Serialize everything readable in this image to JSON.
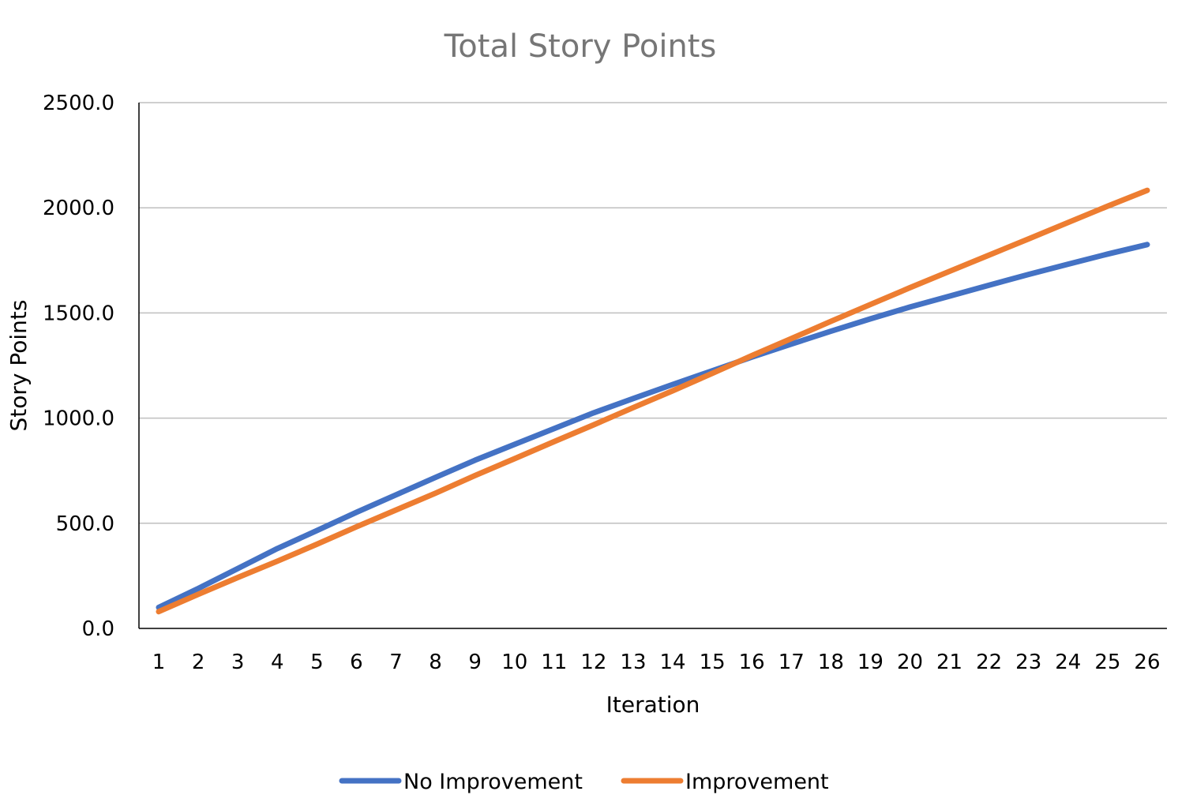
{
  "chart_data": {
    "type": "line",
    "title": "Total Story Points",
    "xlabel": "Iteration",
    "ylabel": "Story Points",
    "categories": [
      "1",
      "2",
      "3",
      "4",
      "5",
      "6",
      "7",
      "8",
      "9",
      "10",
      "11",
      "12",
      "13",
      "14",
      "15",
      "16",
      "17",
      "18",
      "19",
      "20",
      "21",
      "22",
      "23",
      "24",
      "25",
      "26"
    ],
    "y_ticks": [
      "0.0",
      "500.0",
      "1000.0",
      "1500.0",
      "2000.0",
      "2500.0"
    ],
    "ylim": [
      0,
      2500
    ],
    "grid": "horizontal",
    "legend_position": "bottom",
    "series": [
      {
        "name": "No Improvement",
        "color": "#4472c4",
        "values": [
          100,
          190,
          285,
          380,
          465,
          552,
          635,
          718,
          800,
          875,
          950,
          1025,
          1093,
          1160,
          1225,
          1290,
          1352,
          1413,
          1472,
          1528,
          1580,
          1632,
          1683,
          1732,
          1780,
          1825
        ]
      },
      {
        "name": "Improvement",
        "color": "#ed7d31",
        "values": [
          80,
          162,
          242,
          320,
          400,
          483,
          563,
          643,
          727,
          807,
          888,
          968,
          1050,
          1130,
          1213,
          1297,
          1378,
          1460,
          1540,
          1620,
          1698,
          1775,
          1852,
          1930,
          2008,
          2083
        ]
      }
    ]
  }
}
